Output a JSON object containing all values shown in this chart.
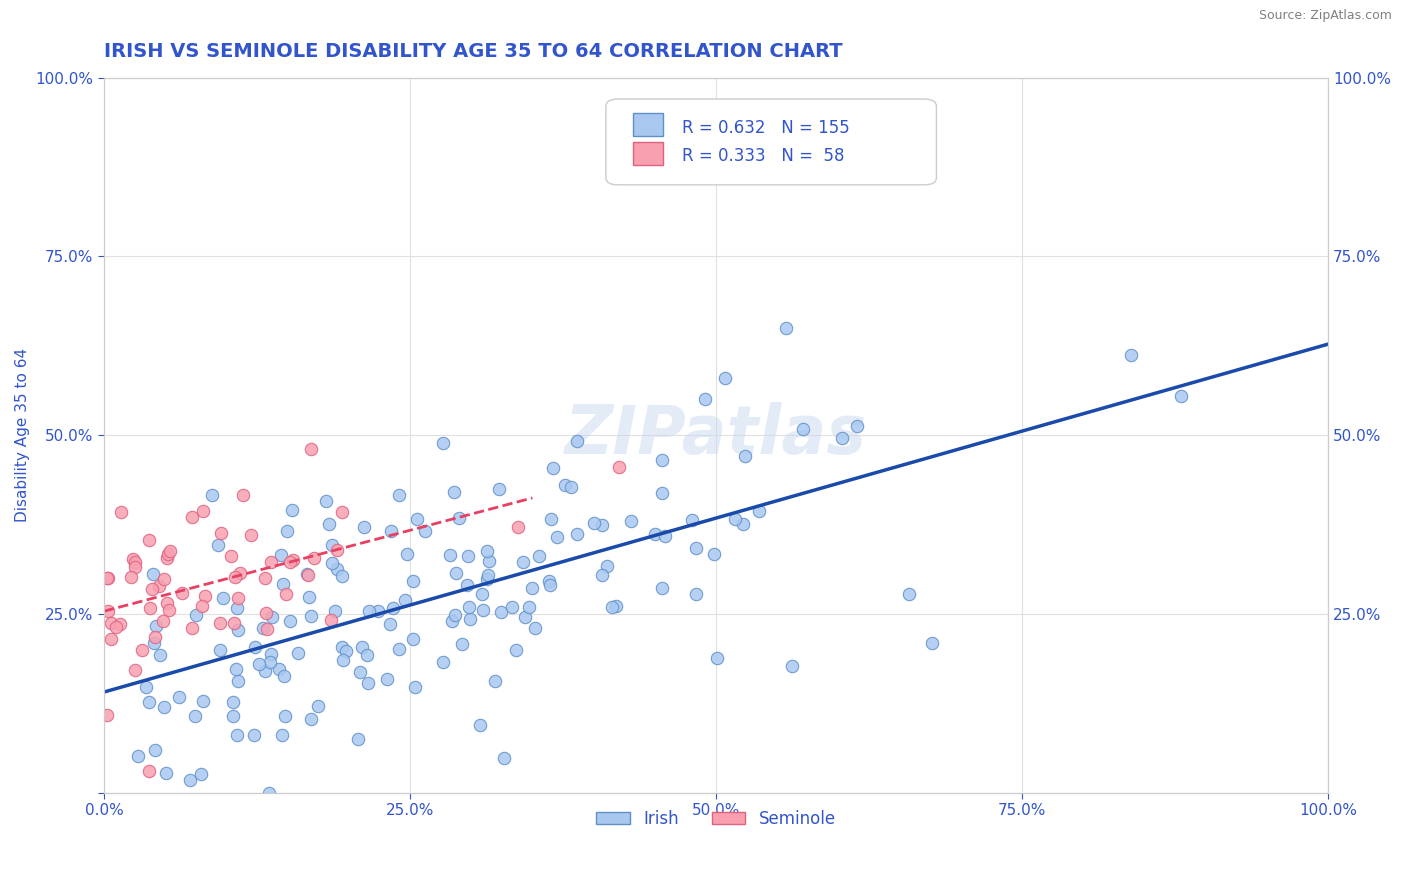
{
  "title": "IRISH VS SEMINOLE DISABILITY AGE 35 TO 64 CORRELATION CHART",
  "source": "Source: ZipAtlas.com",
  "xlabel": "",
  "ylabel": "Disability Age 35 to 64",
  "xlim": [
    0,
    1
  ],
  "ylim": [
    0,
    1
  ],
  "xticks": [
    0.0,
    0.25,
    0.5,
    0.75,
    1.0
  ],
  "xticklabels": [
    "0.0%",
    "25.0%",
    "50.0%",
    "75.0%",
    "100.0%"
  ],
  "yticks": [
    0.0,
    0.25,
    0.5,
    0.75,
    1.0
  ],
  "yticklabels": [
    "",
    "25.0%",
    "50.0%",
    "75.0%",
    "100.0%"
  ],
  "irish_color": "#a8c8f0",
  "seminole_color": "#f8a0b0",
  "irish_edge": "#6090c8",
  "seminole_edge": "#e06080",
  "trend_irish_color": "#1a4aaa",
  "trend_seminole_color": "#e84060",
  "trend_line_style": "--",
  "R_irish": 0.632,
  "N_irish": 155,
  "R_seminole": 0.333,
  "N_seminole": 58,
  "legend_R_color": "#3355cc",
  "watermark": "ZIPatlas",
  "background_color": "#ffffff",
  "grid_color": "#e0e0e0",
  "title_color": "#3355cc",
  "axis_color": "#3355cc",
  "tick_color": "#3355cc",
  "irish_seed": 42,
  "seminole_seed": 7
}
